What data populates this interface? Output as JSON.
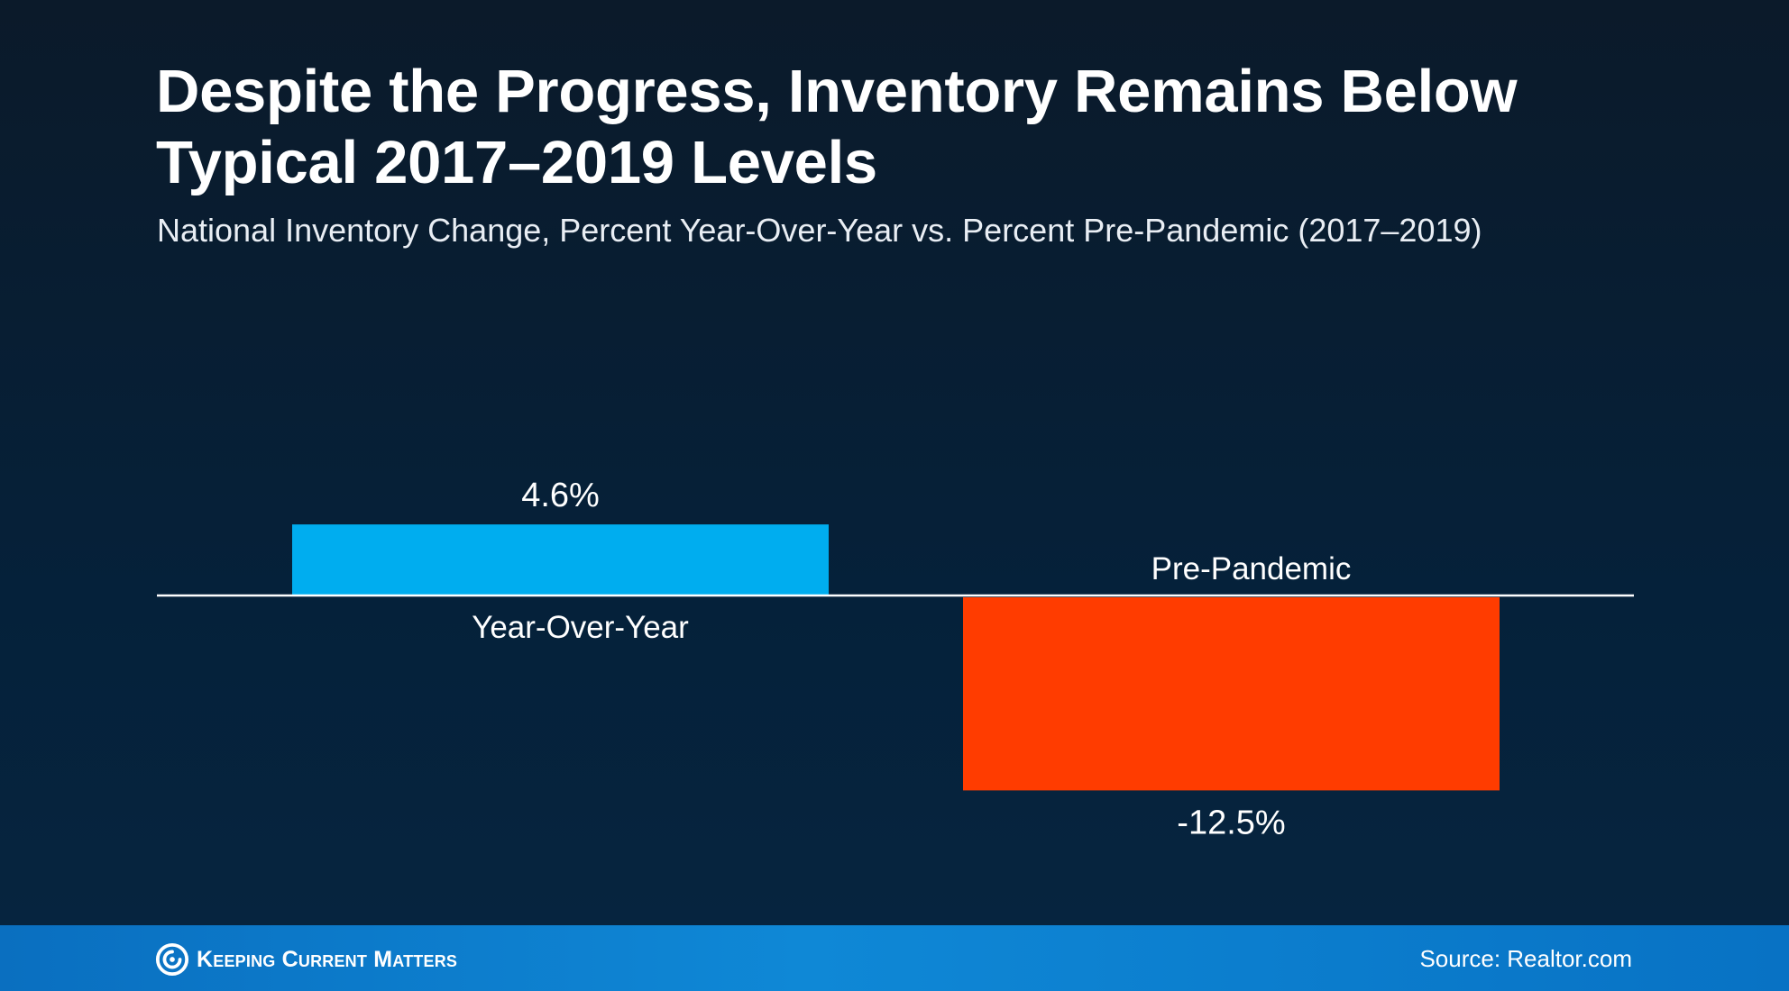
{
  "title_line1": "Despite the Progress, Inventory Remains Below",
  "title_line2": "Typical 2017–2019 Levels",
  "subtitle": "National Inventory Change, Percent Year-Over-Year vs. Percent Pre-Pandemic (2017–2019)",
  "chart_data": {
    "type": "bar",
    "title": "Despite the Progress, Inventory Remains Below Typical 2017–2019 Levels",
    "subtitle": "National Inventory Change, Percent Year-Over-Year vs. Percent Pre-Pandemic (2017–2019)",
    "categories": [
      "Year-Over-Year",
      "Pre-Pandemic"
    ],
    "values": [
      4.6,
      -12.5
    ],
    "value_labels": [
      "4.6%",
      "-12.5%"
    ],
    "colors": [
      "#00adef",
      "#ff3c00"
    ],
    "ylim": [
      -16,
      16
    ],
    "grid": false,
    "legend": "none"
  },
  "footer": {
    "logo_text": "Keeping Current Matters",
    "source": "Source: Realtor.com",
    "color": "#0f88d6"
  }
}
